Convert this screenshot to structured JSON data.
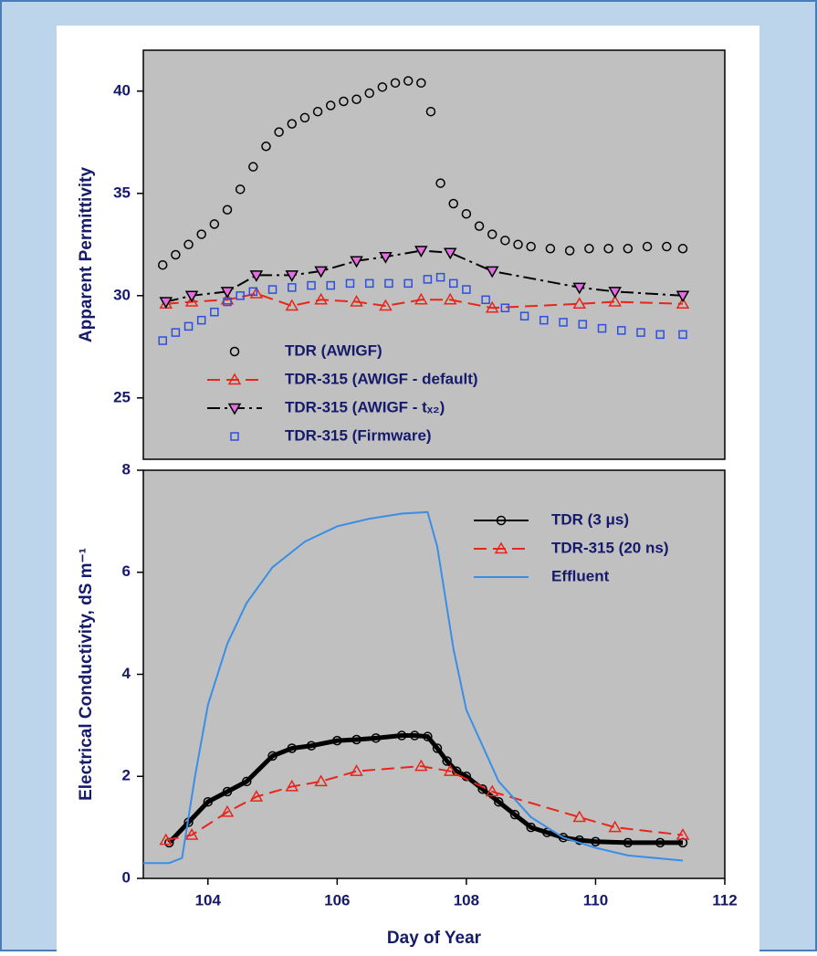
{
  "chart_data": [
    {
      "type": "line",
      "ylabel": "Apparent Permittivity",
      "xlim": [
        103,
        112
      ],
      "ylim": [
        22,
        42
      ],
      "yticks": [
        25,
        30,
        35,
        40
      ],
      "legend": "lower left",
      "series": [
        {
          "name": "TDR (AWIGF)",
          "color": "#000000",
          "marker": "circle",
          "linestyle": "none",
          "x": [
            103.3,
            103.5,
            103.7,
            103.9,
            104.1,
            104.3,
            104.5,
            104.7,
            104.9,
            105.1,
            105.3,
            105.5,
            105.7,
            105.9,
            106.1,
            106.3,
            106.5,
            106.7,
            106.9,
            107.1,
            107.3,
            107.45,
            107.6,
            107.8,
            108.0,
            108.2,
            108.4,
            108.6,
            108.8,
            109.0,
            109.3,
            109.6,
            109.9,
            110.2,
            110.5,
            110.8,
            111.1,
            111.35
          ],
          "values": [
            31.5,
            32.0,
            32.5,
            33.0,
            33.5,
            34.2,
            35.2,
            36.3,
            37.3,
            38.0,
            38.4,
            38.7,
            39.0,
            39.3,
            39.5,
            39.6,
            39.9,
            40.2,
            40.4,
            40.5,
            40.4,
            39.0,
            35.5,
            34.5,
            34.0,
            33.4,
            33.0,
            32.7,
            32.5,
            32.4,
            32.3,
            32.2,
            32.3,
            32.3,
            32.3,
            32.4,
            32.4,
            32.3
          ]
        },
        {
          "name": "TDR-315 (AWIGF - default)",
          "color": "#e8251c",
          "marker": "triangle-up",
          "linestyle": "dashed",
          "x": [
            103.35,
            103.75,
            104.3,
            104.75,
            105.3,
            105.75,
            106.3,
            106.75,
            107.3,
            107.75,
            108.4,
            109.75,
            110.3,
            111.35
          ],
          "values": [
            29.6,
            29.7,
            29.8,
            30.1,
            29.5,
            29.8,
            29.7,
            29.5,
            29.8,
            29.8,
            29.4,
            29.6,
            29.7,
            29.6
          ]
        },
        {
          "name": "TDR-315 (AWIGF - tₓ₂)",
          "color": "#000000",
          "markerfill": "#e26ee2",
          "marker": "triangle-down",
          "linestyle": "dashdot",
          "x": [
            103.35,
            103.75,
            104.3,
            104.75,
            105.3,
            105.75,
            106.3,
            106.75,
            107.3,
            107.75,
            108.4,
            109.75,
            110.3,
            111.35
          ],
          "values": [
            29.7,
            30.0,
            30.2,
            31.0,
            31.0,
            31.2,
            31.7,
            31.9,
            32.2,
            32.1,
            31.2,
            30.4,
            30.2,
            30.0
          ]
        },
        {
          "name": "TDR-315 (Firmware)",
          "color": "#2d4fe0",
          "marker": "square",
          "linestyle": "none",
          "x": [
            103.3,
            103.5,
            103.7,
            103.9,
            104.1,
            104.3,
            104.5,
            104.7,
            105.0,
            105.3,
            105.6,
            105.9,
            106.2,
            106.5,
            106.8,
            107.1,
            107.4,
            107.6,
            107.8,
            108.0,
            108.3,
            108.6,
            108.9,
            109.2,
            109.5,
            109.8,
            110.1,
            110.4,
            110.7,
            111.0,
            111.35
          ],
          "values": [
            27.8,
            28.2,
            28.5,
            28.8,
            29.2,
            29.7,
            30.0,
            30.2,
            30.3,
            30.4,
            30.5,
            30.5,
            30.6,
            30.6,
            30.6,
            30.6,
            30.8,
            30.9,
            30.6,
            30.3,
            29.8,
            29.4,
            29.0,
            28.8,
            28.7,
            28.6,
            28.4,
            28.3,
            28.2,
            28.1,
            28.1
          ]
        }
      ]
    },
    {
      "type": "line",
      "ylabel": "Electrical Conductivity, dS m⁻¹",
      "xlabel": "Day of Year",
      "xlim": [
        103,
        112
      ],
      "xticks": [
        104,
        106,
        108,
        110,
        112
      ],
      "ylim": [
        0,
        8
      ],
      "yticks": [
        0,
        2,
        4,
        6,
        8
      ],
      "legend": "upper right",
      "series": [
        {
          "name": "TDR (3 μs)",
          "color": "#000000",
          "marker": "circle",
          "linestyle": "solid",
          "x": [
            103.4,
            103.7,
            104.0,
            104.3,
            104.6,
            105.0,
            105.3,
            105.6,
            106.0,
            106.3,
            106.6,
            107.0,
            107.2,
            107.4,
            107.55,
            107.7,
            107.85,
            108.0,
            108.25,
            108.5,
            108.75,
            109.0,
            109.25,
            109.5,
            109.75,
            110.0,
            110.5,
            111.0,
            111.35
          ],
          "values": [
            0.7,
            1.1,
            1.5,
            1.7,
            1.9,
            2.4,
            2.55,
            2.6,
            2.7,
            2.72,
            2.75,
            2.8,
            2.8,
            2.78,
            2.55,
            2.3,
            2.1,
            2.0,
            1.75,
            1.5,
            1.25,
            1.0,
            0.9,
            0.8,
            0.75,
            0.72,
            0.7,
            0.7,
            0.7
          ]
        },
        {
          "name": "TDR-315 (20 ns)",
          "color": "#e8251c",
          "marker": "triangle-up",
          "linestyle": "dashed",
          "x": [
            103.35,
            103.75,
            104.3,
            104.75,
            105.3,
            105.75,
            106.3,
            107.3,
            107.75,
            108.4,
            109.75,
            110.3,
            111.35
          ],
          "values": [
            0.75,
            0.85,
            1.3,
            1.6,
            1.8,
            1.9,
            2.1,
            2.2,
            2.1,
            1.7,
            1.2,
            1.0,
            0.85
          ]
        },
        {
          "name": "Effluent",
          "color": "#3a8ee6",
          "marker": "none",
          "linestyle": "solid",
          "x": [
            103.0,
            103.4,
            103.6,
            103.8,
            104.0,
            104.3,
            104.6,
            105.0,
            105.5,
            106.0,
            106.5,
            107.0,
            107.4,
            107.55,
            107.8,
            108.0,
            108.5,
            109.0,
            109.5,
            110.0,
            110.5,
            111.35
          ],
          "values": [
            0.3,
            0.3,
            0.4,
            2.0,
            3.4,
            4.6,
            5.4,
            6.1,
            6.6,
            6.9,
            7.05,
            7.15,
            7.18,
            6.5,
            4.5,
            3.3,
            1.9,
            1.2,
            0.8,
            0.6,
            0.45,
            0.35
          ]
        }
      ]
    }
  ]
}
